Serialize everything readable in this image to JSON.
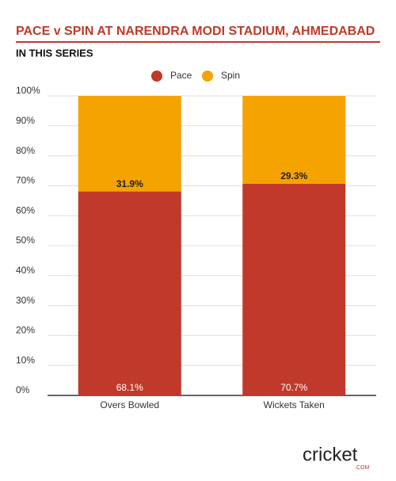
{
  "chart_data": {
    "type": "stacked_bar",
    "title": "PACE v SPIN AT NARENDRA MODI STADIUM, AHMEDABAD",
    "subtitle": "IN THIS SERIES",
    "categories": [
      "Overs Bowled",
      "Wickets Taken"
    ],
    "series": [
      {
        "name": "Pace",
        "color": "#c0392b",
        "values": [
          68.1,
          70.7
        ],
        "value_labels": [
          "68.1%",
          "70.7%"
        ]
      },
      {
        "name": "Spin",
        "color": "#f5a300",
        "values": [
          31.9,
          29.3
        ],
        "value_labels": [
          "31.9%",
          "29.3%"
        ]
      }
    ],
    "ylim": [
      0,
      100
    ],
    "yticks": [
      {
        "value": 0,
        "label": "0%"
      },
      {
        "value": 10,
        "label": "10%"
      },
      {
        "value": 20,
        "label": "20%"
      },
      {
        "value": 30,
        "label": "30%"
      },
      {
        "value": 40,
        "label": "40%"
      },
      {
        "value": 50,
        "label": "50%"
      },
      {
        "value": 60,
        "label": "60%"
      },
      {
        "value": 70,
        "label": "70%"
      },
      {
        "value": 80,
        "label": "80%"
      },
      {
        "value": 90,
        "label": "90%"
      },
      {
        "value": 100,
        "label": "100%"
      }
    ],
    "grid": true,
    "legend": "top",
    "logo": {
      "text": "cricket",
      "suffix": ".COM"
    }
  }
}
